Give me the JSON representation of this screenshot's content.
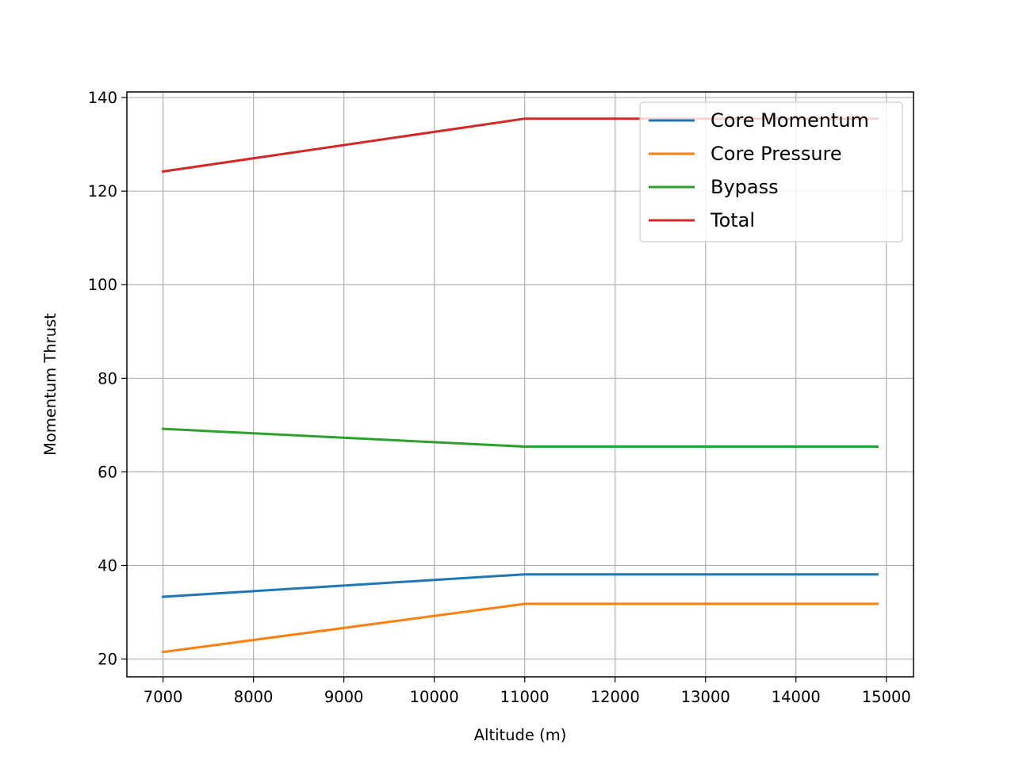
{
  "chart_data": {
    "type": "line",
    "title": "",
    "xlabel": "Altitude (m)",
    "ylabel": "Momentum Thrust",
    "xlim": [
      6600,
      15300
    ],
    "ylim": [
      16.2,
      141.2
    ],
    "xticks": [
      7000,
      8000,
      9000,
      10000,
      11000,
      12000,
      13000,
      14000,
      15000
    ],
    "yticks": [
      20,
      40,
      60,
      80,
      100,
      120,
      140
    ],
    "grid": true,
    "legend_position": "top-right",
    "x": [
      7000,
      11000,
      14900
    ],
    "series": [
      {
        "name": "Core Momentum",
        "color": "#1f77b4",
        "values": [
          33.3,
          38.1,
          38.1
        ]
      },
      {
        "name": "Core Pressure",
        "color": "#ff7f0e",
        "values": [
          21.5,
          31.8,
          31.8
        ]
      },
      {
        "name": "Bypass",
        "color": "#2ca02c",
        "values": [
          69.2,
          65.4,
          65.4
        ]
      },
      {
        "name": "Total",
        "color": "#d62728",
        "values": [
          124.2,
          135.5,
          135.5
        ]
      }
    ]
  }
}
